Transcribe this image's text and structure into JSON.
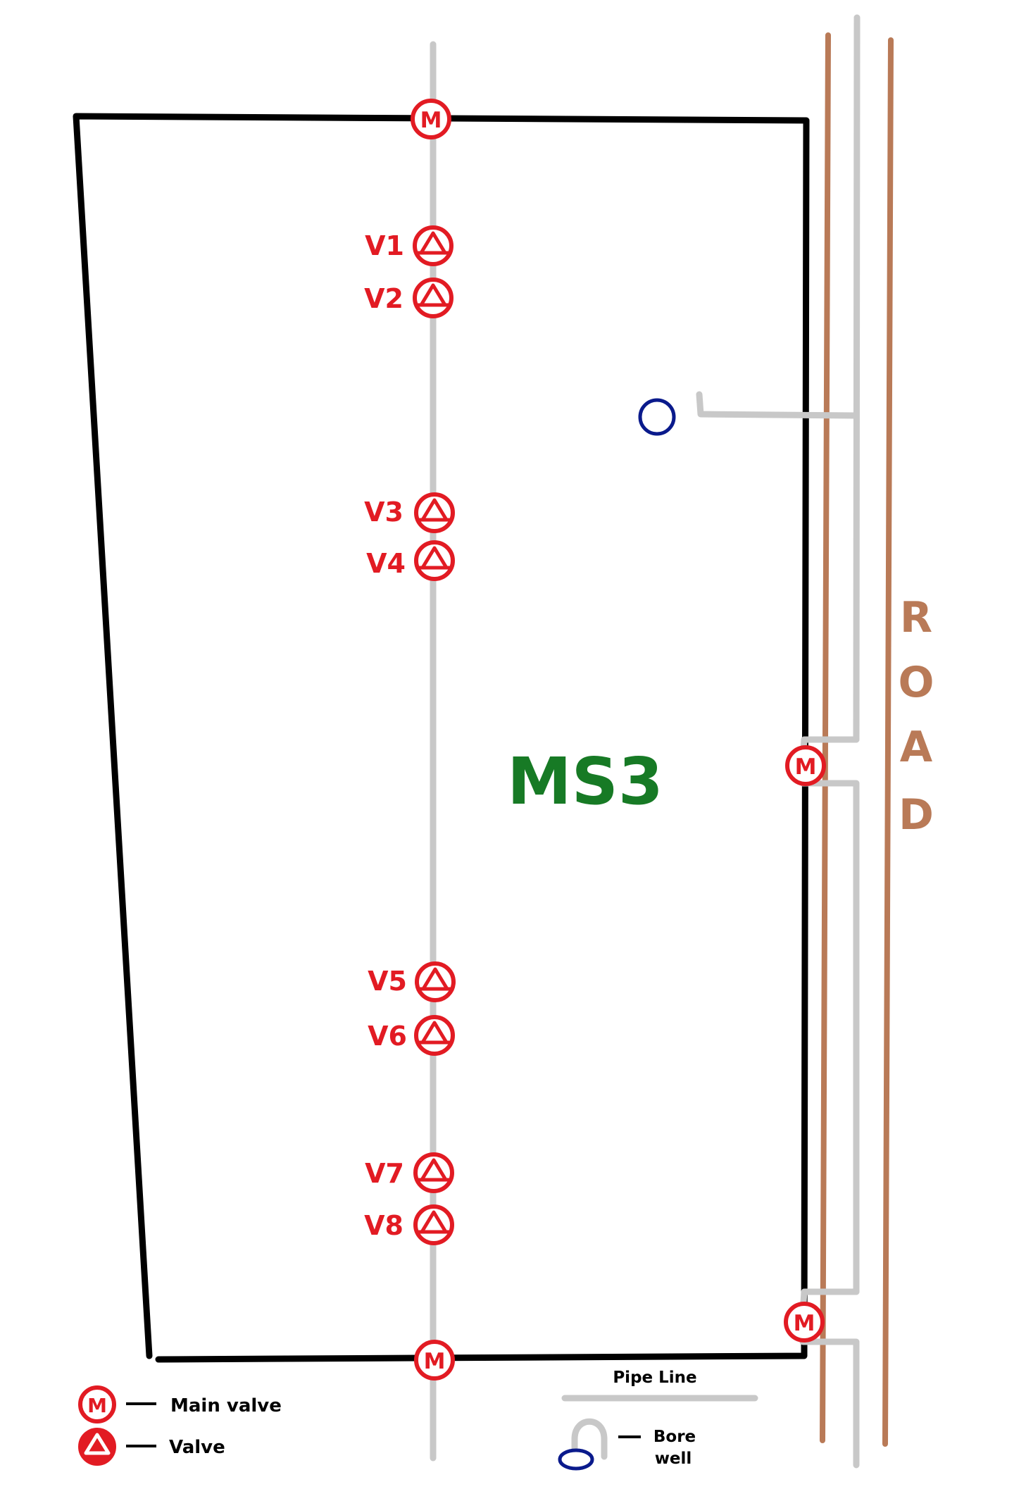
{
  "field_label": "MS3",
  "road_letters": [
    "R",
    "O",
    "A",
    "D"
  ],
  "valve_symbol_letter": "M",
  "valves": [
    {
      "label": "V1"
    },
    {
      "label": "V2"
    },
    {
      "label": "V3"
    },
    {
      "label": "V4"
    },
    {
      "label": "V5"
    },
    {
      "label": "V6"
    },
    {
      "label": "V7"
    },
    {
      "label": "V8"
    }
  ],
  "legend": {
    "main_valve": "Main valve",
    "valve": "Valve",
    "pipe_line": "Pipe Line",
    "bore_well_line1": "Bore",
    "bore_well_line2": "well"
  },
  "colors": {
    "boundary": "#000000",
    "pipe": "#c8c8c8",
    "road": "#b97a57",
    "valve": "#e21b23",
    "field_label": "#177a25",
    "bore_well": "#0a1a8c"
  }
}
